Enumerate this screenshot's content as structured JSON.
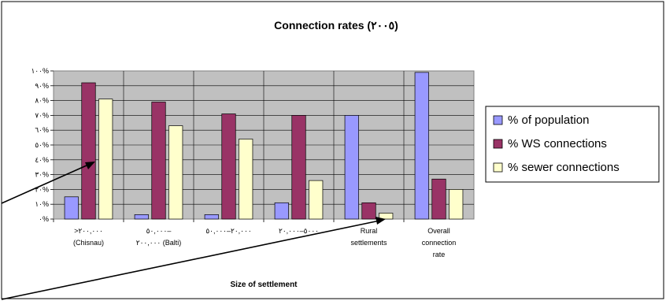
{
  "chart_data": {
    "type": "bar",
    "title": "Connection rates (٢٠٠٥)",
    "xlabel": "Size of settlement",
    "ylabel": "",
    "ylim": [
      0,
      100
    ],
    "ytick_labels": [
      "٠%",
      "١٠%",
      "٢٠%",
      "٣٠%",
      "٤٠%",
      "٥٠%",
      "٦٠%",
      "٧٠%",
      "٨٠%",
      "٩٠%",
      "١٠٠%"
    ],
    "categories": [
      [
        ">٢٠٠,٠٠٠",
        "(Chisnau)"
      ],
      [
        "٥٠,٠٠٠–",
        "٢٠٠,٠٠٠ (Balti)"
      ],
      [
        "٢٠,٠٠٠–٥٠,٠٠٠"
      ],
      [
        "٥٠٠٠–٢٠,٠٠٠"
      ],
      [
        "Rural",
        "settlements"
      ],
      [
        "Overall",
        "connection",
        "rate"
      ]
    ],
    "series": [
      {
        "name": "% of population",
        "color": "#9999FF",
        "values": [
          15,
          3,
          3,
          11,
          70,
          99
        ]
      },
      {
        "name": "% WS connections",
        "color": "#993366",
        "values": [
          92,
          79,
          71,
          70,
          11,
          27
        ]
      },
      {
        "name": "% sewer connections",
        "color": "#FFFFCC",
        "values": [
          81,
          63,
          54,
          26,
          4,
          20
        ]
      }
    ],
    "grid": true,
    "legend_position": "right"
  }
}
